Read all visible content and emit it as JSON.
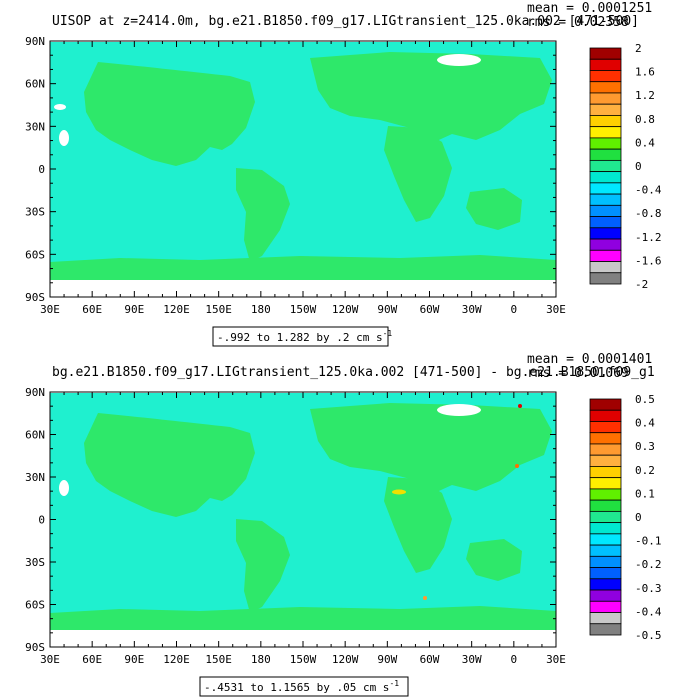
{
  "palette": {
    "land_fill": "#2ee86a",
    "ocean_fill": "#1ff0cf",
    "frame": "#000000"
  },
  "chart_data": [
    {
      "type": "heatmap",
      "title": "UISOP at z=2414.0m, bg.e21.B1850.f09_g17.LIGtransient_125.0ka.002 [471-500]",
      "mean_label": "mean = 0.0001251",
      "rms_label": "rms = 0.02358",
      "x_ticks": [
        "30E",
        "60E",
        "90E",
        "120E",
        "150E",
        "180",
        "150W",
        "120W",
        "90W",
        "60W",
        "30W",
        "0",
        "30E"
      ],
      "y_ticks": [
        "90N",
        "60N",
        "30N",
        "0",
        "30S",
        "60S",
        "90S"
      ],
      "xlim": [
        30,
        390
      ],
      "ylim": [
        -90,
        90
      ],
      "range_label_main": "-.992 to 1.282 by .2 cm s",
      "range_label_sup": "-1",
      "colorbar_labels": [
        "2",
        "1.6",
        "1.2",
        "0.8",
        "0.4",
        "0",
        "-0.4",
        "-0.8",
        "-1.2",
        "-1.6",
        "-2"
      ],
      "colorbar_colors": [
        "#a00000",
        "#e00000",
        "#ff3000",
        "#ff7000",
        "#ff9a30",
        "#ffb040",
        "#ffd000",
        "#fff000",
        "#60f000",
        "#20e040",
        "#20e890",
        "#00e8d0",
        "#00e8ff",
        "#00c0ff",
        "#0090ff",
        "#0060ff",
        "#0000ff",
        "#9000e0",
        "#ff00ff",
        "#c8c8c8",
        "#808080"
      ]
    },
    {
      "type": "heatmap",
      "title": "bg.e21.B1850.f09_g17.LIGtransient_125.0ka.002 [471-500] - bg.e21.B1850.f09_g1",
      "mean_label": "mean = 0.0001401",
      "rms_label": "rms = 0.01069",
      "x_ticks": [
        "30E",
        "60E",
        "90E",
        "120E",
        "150E",
        "180",
        "150W",
        "120W",
        "90W",
        "60W",
        "30W",
        "0",
        "30E"
      ],
      "y_ticks": [
        "90N",
        "60N",
        "30N",
        "0",
        "30S",
        "60S",
        "90S"
      ],
      "xlim": [
        30,
        390
      ],
      "ylim": [
        -90,
        90
      ],
      "range_label_main": "-.4531 to 1.1565 by .05 cm s",
      "range_label_sup": "-1",
      "colorbar_labels": [
        "0.5",
        "0.4",
        "0.3",
        "0.2",
        "0.1",
        "0",
        "-0.1",
        "-0.2",
        "-0.3",
        "-0.4",
        "-0.5"
      ],
      "colorbar_colors": [
        "#a00000",
        "#e00000",
        "#ff3000",
        "#ff7000",
        "#ff9a30",
        "#ffb040",
        "#ffd000",
        "#fff000",
        "#60f000",
        "#20e040",
        "#20e890",
        "#00e8d0",
        "#00e8ff",
        "#00c0ff",
        "#0090ff",
        "#0060ff",
        "#0000ff",
        "#9000e0",
        "#ff00ff",
        "#c8c8c8",
        "#808080"
      ]
    }
  ]
}
